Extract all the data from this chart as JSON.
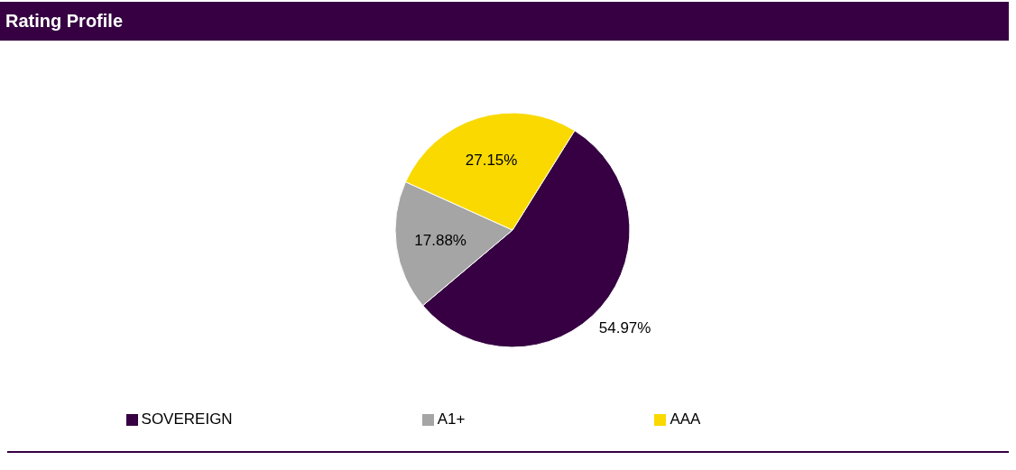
{
  "chart_data": {
    "type": "pie",
    "title": "Rating Profile",
    "categories": [
      "SOVEREIGN",
      "A1+",
      "AAA"
    ],
    "values": [
      54.97,
      17.88,
      27.15
    ],
    "colors": [
      "#360042",
      "#a5a5a5",
      "#f9d900"
    ],
    "value_labels": [
      "54.97%",
      "17.88%",
      "27.15%"
    ],
    "legend": "bottom"
  }
}
